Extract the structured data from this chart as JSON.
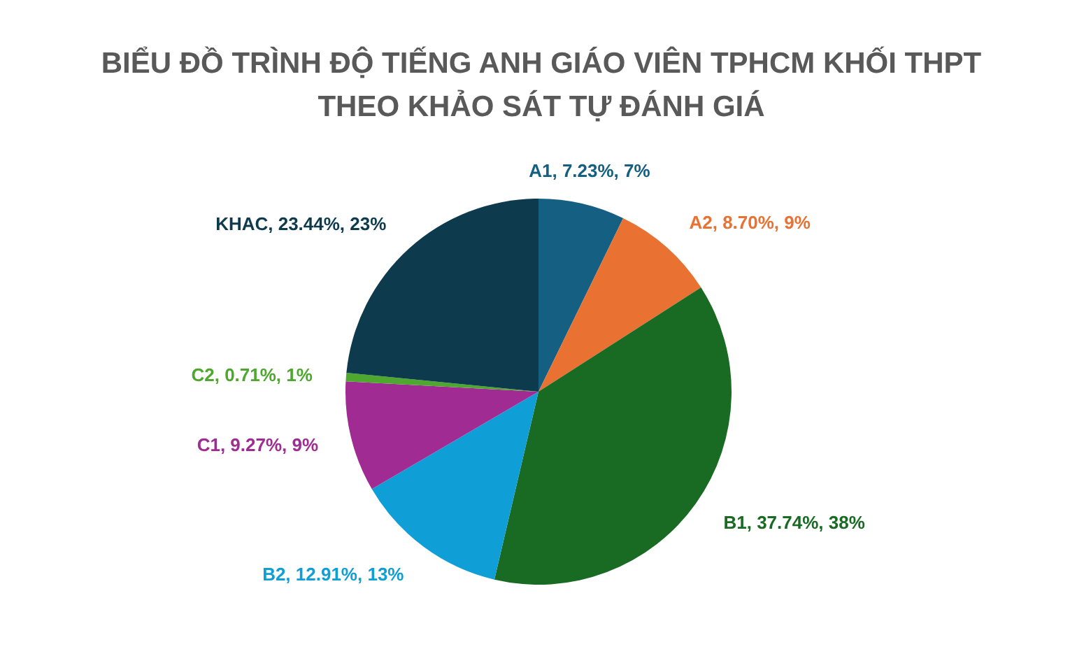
{
  "chart_data": {
    "type": "pie",
    "title": "BIỂU ĐỒ TRÌNH ĐỘ TIẾNG ANH GIÁO VIÊN TPHCM KHỐI THPT\nTHEO KHẢO SÁT TỰ ĐÁNH GIÁ",
    "categories": [
      "A1",
      "A2",
      "B1",
      "B2",
      "C1",
      "C2",
      "KHAC"
    ],
    "values": [
      7.23,
      8.7,
      37.74,
      12.91,
      9.27,
      0.71,
      23.44
    ],
    "colors": [
      "#156082",
      "#e97132",
      "#196b24",
      "#0f9ed5",
      "#a02b93",
      "#4ea72e",
      "#0e3a4e"
    ],
    "value_labels": [
      "7.23%, 7%",
      "8.70%, 9%",
      "37.74%, 38%",
      "12.91%, 13%",
      "9.27%, 9%",
      "0.71%, 1%",
      "23.44%, 23%"
    ]
  }
}
